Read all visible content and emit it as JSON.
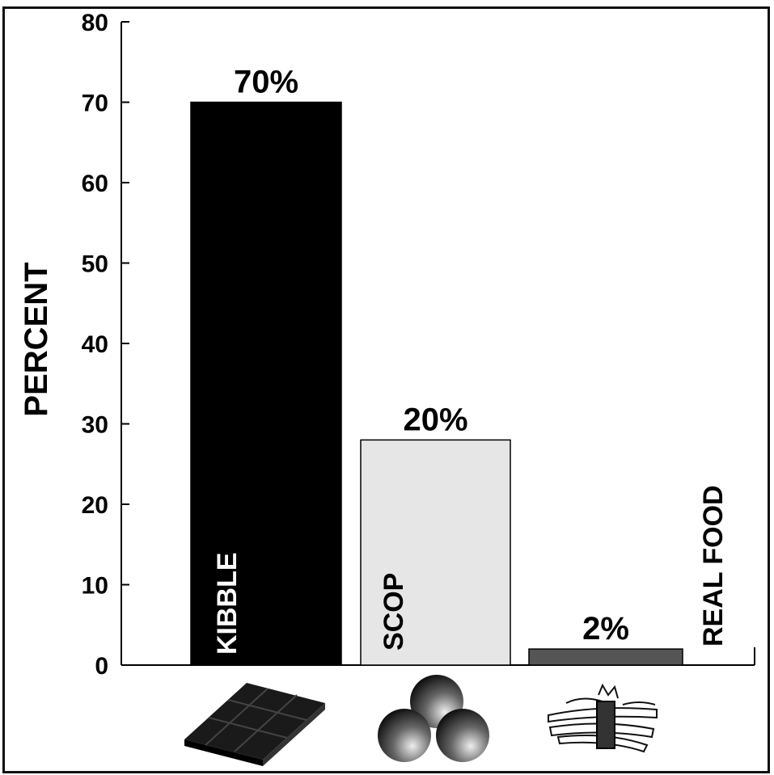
{
  "chart_data": {
    "type": "bar",
    "ylabel": "PERCENT",
    "xlabel": "",
    "ylim": [
      0,
      80
    ],
    "yticks": [
      0,
      10,
      20,
      30,
      40,
      50,
      60,
      70,
      80
    ],
    "grid": false,
    "categories": [
      "KIBBLE",
      "SCOP",
      "REAL FOOD"
    ],
    "values": [
      70,
      20,
      2
    ],
    "value_labels": [
      "70%",
      "20%",
      "2%"
    ],
    "bar_colors": [
      "#000000",
      "#e6e6e6",
      "#555555"
    ],
    "category_icons": [
      "kibble-block-icon",
      "scop-balls-icon",
      "asparagus-icon"
    ]
  }
}
